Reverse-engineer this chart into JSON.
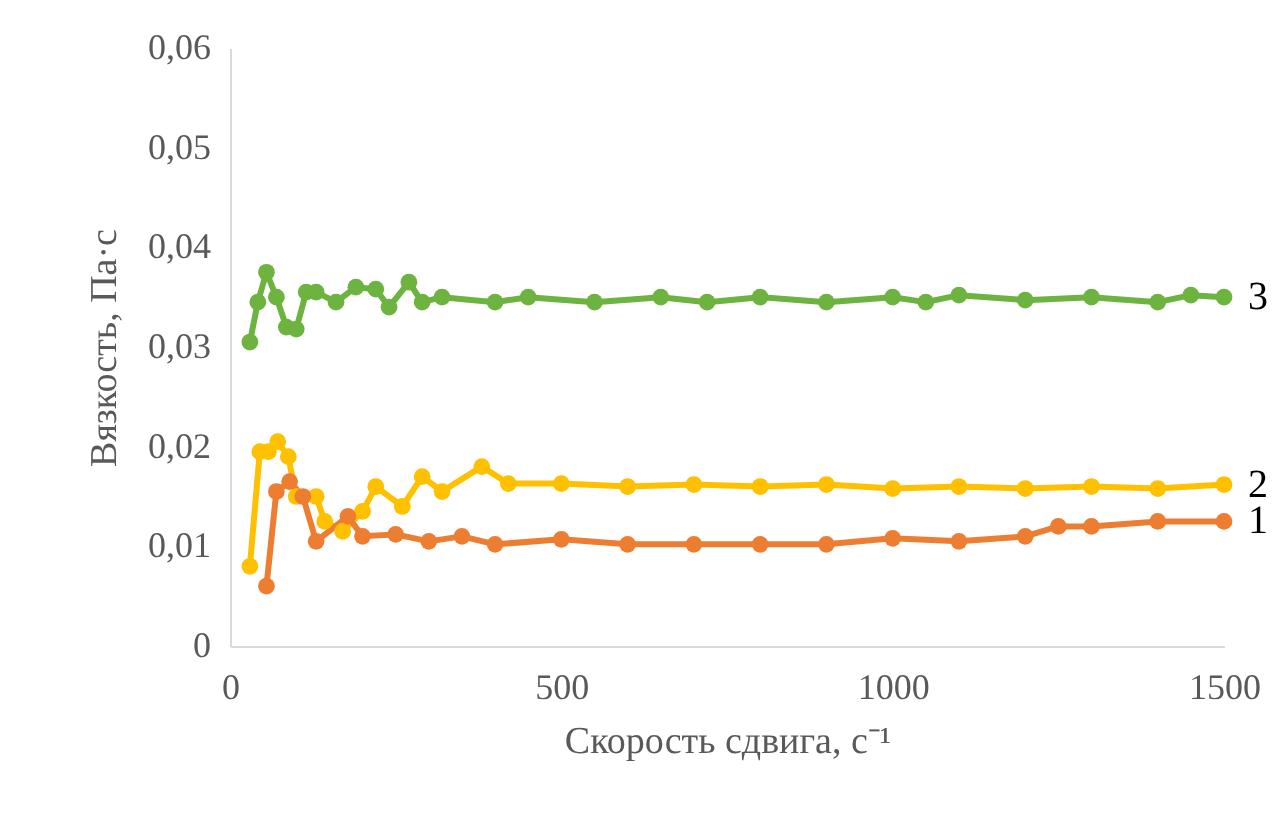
{
  "chart_data": {
    "type": "line",
    "xlabel": "Скорость сдвига, с⁻¹",
    "ylabel": "Вязкость,  Па·с",
    "xlim": [
      0,
      1500
    ],
    "xticks": [
      0,
      500,
      1000,
      1500
    ],
    "ylim": [
      0,
      0.06
    ],
    "yticks": [
      0,
      {
        "value": 0.01,
        "label": "0,01"
      },
      {
        "value": 0.02,
        "label": "0,02"
      },
      {
        "value": 0.03,
        "label": "0,03"
      },
      {
        "value": 0.04,
        "label": "0,04"
      },
      {
        "value": 0.05,
        "label": "0,05"
      },
      {
        "value": 0.06,
        "label": "0,06"
      }
    ],
    "grid": false,
    "legend": false,
    "marker": "circle",
    "line_style": "solid",
    "series": [
      {
        "name": "3",
        "color": "#6cb33f",
        "x": [
          30,
          42,
          55,
          70,
          85,
          100,
          115,
          130,
          160,
          190,
          220,
          240,
          270,
          290,
          320,
          400,
          450,
          550,
          650,
          720,
          800,
          900,
          1000,
          1050,
          1100,
          1200,
          1300,
          1400,
          1450,
          1500
        ],
        "values": [
          0.0305,
          0.0345,
          0.0375,
          0.035,
          0.032,
          0.0318,
          0.0355,
          0.0355,
          0.0345,
          0.036,
          0.0358,
          0.034,
          0.0365,
          0.0345,
          0.035,
          0.0345,
          0.035,
          0.0345,
          0.035,
          0.0345,
          0.035,
          0.0345,
          0.035,
          0.0345,
          0.0352,
          0.0347,
          0.035,
          0.0345,
          0.0352,
          0.035
        ]
      },
      {
        "name": "2",
        "color": "#ffc000",
        "x": [
          30,
          45,
          58,
          72,
          88,
          100,
          130,
          143,
          170,
          200,
          220,
          260,
          290,
          320,
          380,
          420,
          500,
          600,
          700,
          800,
          900,
          1000,
          1100,
          1200,
          1300,
          1400,
          1500
        ],
        "values": [
          0.008,
          0.0195,
          0.0195,
          0.0205,
          0.019,
          0.015,
          0.015,
          0.0125,
          0.0115,
          0.0135,
          0.016,
          0.014,
          0.017,
          0.0155,
          0.018,
          0.0163,
          0.0163,
          0.016,
          0.0162,
          0.016,
          0.0162,
          0.0158,
          0.016,
          0.0158,
          0.016,
          0.0158,
          0.0162
        ]
      },
      {
        "name": "1",
        "color": "#ed7d31",
        "x": [
          55,
          70,
          90,
          110,
          130,
          178,
          200,
          250,
          300,
          350,
          400,
          500,
          600,
          700,
          800,
          900,
          1000,
          1100,
          1200,
          1250,
          1300,
          1400,
          1500
        ],
        "values": [
          0.006,
          0.0155,
          0.0165,
          0.015,
          0.0105,
          0.013,
          0.011,
          0.0112,
          0.0105,
          0.011,
          0.0102,
          0.0107,
          0.0102,
          0.0102,
          0.0102,
          0.0102,
          0.0108,
          0.0105,
          0.011,
          0.012,
          0.012,
          0.0125,
          0.0125
        ]
      }
    ]
  }
}
